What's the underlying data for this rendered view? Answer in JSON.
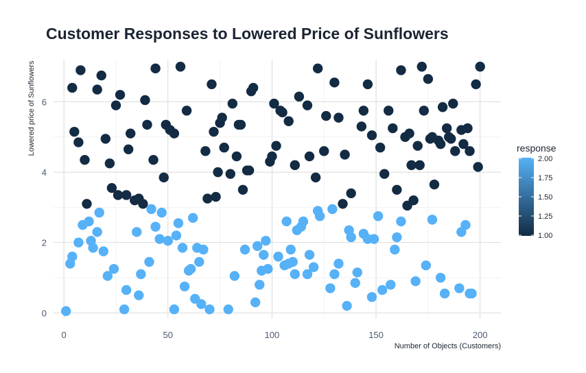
{
  "chart_data": {
    "type": "scatter",
    "title": "Customer Responses to Lowered Price of Sunflowers",
    "xlabel": "Number of Objects (Customers)",
    "ylabel": "Lowered price of Sunflowers",
    "xlim": [
      -5,
      210
    ],
    "ylim": [
      -0.15,
      7.2
    ],
    "x_ticks": [
      0,
      50,
      100,
      150,
      200
    ],
    "y_ticks": [
      0,
      2,
      4,
      6
    ],
    "grid": true,
    "legend": {
      "title": "response",
      "position": "right",
      "type": "colorbar",
      "range": [
        1,
        2
      ],
      "ticks": [
        "1.00",
        "1.25",
        "1.50",
        "1.75",
        "2.00"
      ],
      "low_color": "#132b43",
      "high_color": "#56b1f7"
    },
    "series": [
      {
        "response": 1,
        "color": "#132b43",
        "points": [
          [
            4,
            6.4
          ],
          [
            5,
            5.15
          ],
          [
            7,
            4.85
          ],
          [
            8,
            6.9
          ],
          [
            10,
            4.35
          ],
          [
            11,
            3.1
          ],
          [
            16,
            6.35
          ],
          [
            18,
            6.75
          ],
          [
            20,
            4.95
          ],
          [
            22,
            4.25
          ],
          [
            23,
            3.55
          ],
          [
            25,
            5.9
          ],
          [
            26,
            3.35
          ],
          [
            27,
            6.2
          ],
          [
            30,
            3.35
          ],
          [
            31,
            4.65
          ],
          [
            32,
            5.1
          ],
          [
            34,
            3.2
          ],
          [
            36,
            3.25
          ],
          [
            38,
            3.1
          ],
          [
            39,
            6.05
          ],
          [
            40,
            5.35
          ],
          [
            43,
            4.35
          ],
          [
            44,
            6.95
          ],
          [
            48,
            3.85
          ],
          [
            49,
            5.35
          ],
          [
            51,
            5.2
          ],
          [
            53,
            5.1
          ],
          [
            56,
            7.0
          ],
          [
            59,
            5.75
          ],
          [
            68,
            4.6
          ],
          [
            69,
            3.25
          ],
          [
            71,
            6.5
          ],
          [
            72,
            5.15
          ],
          [
            73,
            3.3
          ],
          [
            74,
            4.0
          ],
          [
            75,
            5.4
          ],
          [
            76,
            5.55
          ],
          [
            77,
            4.7
          ],
          [
            80,
            3.95
          ],
          [
            81,
            5.95
          ],
          [
            83,
            4.45
          ],
          [
            84,
            5.35
          ],
          [
            85,
            5.35
          ],
          [
            86,
            3.5
          ],
          [
            88,
            4.05
          ],
          [
            89,
            4.05
          ],
          [
            90,
            6.3
          ],
          [
            91,
            6.4
          ],
          [
            99,
            4.3
          ],
          [
            100,
            4.45
          ],
          [
            101,
            5.95
          ],
          [
            102,
            4.75
          ],
          [
            104,
            5.75
          ],
          [
            105,
            5.7
          ],
          [
            108,
            5.45
          ],
          [
            111,
            4.2
          ],
          [
            113,
            6.15
          ],
          [
            117,
            5.9
          ],
          [
            118,
            4.45
          ],
          [
            121,
            3.85
          ],
          [
            122,
            6.95
          ],
          [
            125,
            4.6
          ],
          [
            126,
            5.6
          ],
          [
            130,
            6.55
          ],
          [
            132,
            5.55
          ],
          [
            134,
            3.1
          ],
          [
            135,
            4.5
          ],
          [
            138,
            3.4
          ],
          [
            143,
            5.3
          ],
          [
            144,
            5.75
          ],
          [
            146,
            6.5
          ],
          [
            148,
            5.05
          ],
          [
            152,
            4.7
          ],
          [
            154,
            3.95
          ],
          [
            156,
            5.75
          ],
          [
            158,
            5.25
          ],
          [
            160,
            3.5
          ],
          [
            162,
            6.9
          ],
          [
            164,
            5.0
          ],
          [
            165,
            3.05
          ],
          [
            166,
            5.1
          ],
          [
            167,
            4.2
          ],
          [
            168,
            3.2
          ],
          [
            170,
            4.75
          ],
          [
            171,
            4.2
          ],
          [
            172,
            7.0
          ],
          [
            173,
            5.75
          ],
          [
            175,
            6.65
          ],
          [
            176,
            4.95
          ],
          [
            177,
            5.0
          ],
          [
            178,
            3.65
          ],
          [
            180,
            4.9
          ],
          [
            181,
            4.8
          ],
          [
            182,
            5.85
          ],
          [
            184,
            5.25
          ],
          [
            185,
            5.0
          ],
          [
            186,
            4.95
          ],
          [
            187,
            5.95
          ],
          [
            188,
            4.6
          ],
          [
            191,
            5.2
          ],
          [
            192,
            4.8
          ],
          [
            194,
            5.25
          ],
          [
            195,
            4.6
          ],
          [
            198,
            6.5
          ],
          [
            199,
            4.15
          ],
          [
            200,
            7.0
          ]
        ]
      },
      {
        "response": 2,
        "color": "#56b1f7",
        "points": [
          [
            1,
            0.05
          ],
          [
            3,
            1.4
          ],
          [
            4,
            1.6
          ],
          [
            7,
            2.0
          ],
          [
            9,
            2.5
          ],
          [
            12,
            2.6
          ],
          [
            13,
            2.05
          ],
          [
            14,
            1.85
          ],
          [
            16,
            2.3
          ],
          [
            17,
            2.85
          ],
          [
            19,
            1.75
          ],
          [
            21,
            1.05
          ],
          [
            24,
            1.25
          ],
          [
            29,
            0.1
          ],
          [
            30,
            0.65
          ],
          [
            35,
            2.3
          ],
          [
            36,
            0.5
          ],
          [
            37,
            1.1
          ],
          [
            41,
            1.45
          ],
          [
            42,
            2.95
          ],
          [
            44,
            2.45
          ],
          [
            46,
            2.1
          ],
          [
            47,
            2.85
          ],
          [
            50,
            2.05
          ],
          [
            53,
            0.1
          ],
          [
            54,
            2.2
          ],
          [
            55,
            2.55
          ],
          [
            57,
            1.85
          ],
          [
            58,
            0.75
          ],
          [
            60,
            1.2
          ],
          [
            61,
            1.25
          ],
          [
            62,
            2.7
          ],
          [
            63,
            0.4
          ],
          [
            64,
            1.85
          ],
          [
            65,
            1.45
          ],
          [
            66,
            0.25
          ],
          [
            67,
            1.8
          ],
          [
            70,
            0.1
          ],
          [
            79,
            0.1
          ],
          [
            82,
            1.05
          ],
          [
            87,
            1.8
          ],
          [
            92,
            0.3
          ],
          [
            93,
            1.9
          ],
          [
            94,
            0.8
          ],
          [
            95,
            1.2
          ],
          [
            96,
            1.65
          ],
          [
            97,
            2.05
          ],
          [
            98,
            1.25
          ],
          [
            103,
            1.6
          ],
          [
            106,
            1.35
          ],
          [
            107,
            2.6
          ],
          [
            108,
            1.4
          ],
          [
            109,
            1.8
          ],
          [
            110,
            1.45
          ],
          [
            111,
            1.1
          ],
          [
            112,
            2.35
          ],
          [
            114,
            2.45
          ],
          [
            115,
            2.6
          ],
          [
            117,
            1.1
          ],
          [
            118,
            1.65
          ],
          [
            120,
            1.3
          ],
          [
            122,
            2.9
          ],
          [
            123,
            2.75
          ],
          [
            128,
            0.7
          ],
          [
            129,
            2.95
          ],
          [
            130,
            1.1
          ],
          [
            132,
            1.4
          ],
          [
            136,
            0.2
          ],
          [
            137,
            2.35
          ],
          [
            138,
            2.15
          ],
          [
            140,
            0.85
          ],
          [
            141,
            1.15
          ],
          [
            144,
            2.25
          ],
          [
            146,
            2.1
          ],
          [
            148,
            0.45
          ],
          [
            149,
            2.1
          ],
          [
            151,
            2.75
          ],
          [
            153,
            0.65
          ],
          [
            157,
            0.8
          ],
          [
            159,
            1.8
          ],
          [
            160,
            2.15
          ],
          [
            162,
            2.6
          ],
          [
            169,
            0.9
          ],
          [
            174,
            1.35
          ],
          [
            177,
            2.65
          ],
          [
            181,
            1.0
          ],
          [
            183,
            0.55
          ],
          [
            190,
            0.7
          ],
          [
            191,
            2.3
          ],
          [
            193,
            2.5
          ],
          [
            195,
            0.55
          ],
          [
            196,
            0.55
          ]
        ]
      }
    ]
  }
}
